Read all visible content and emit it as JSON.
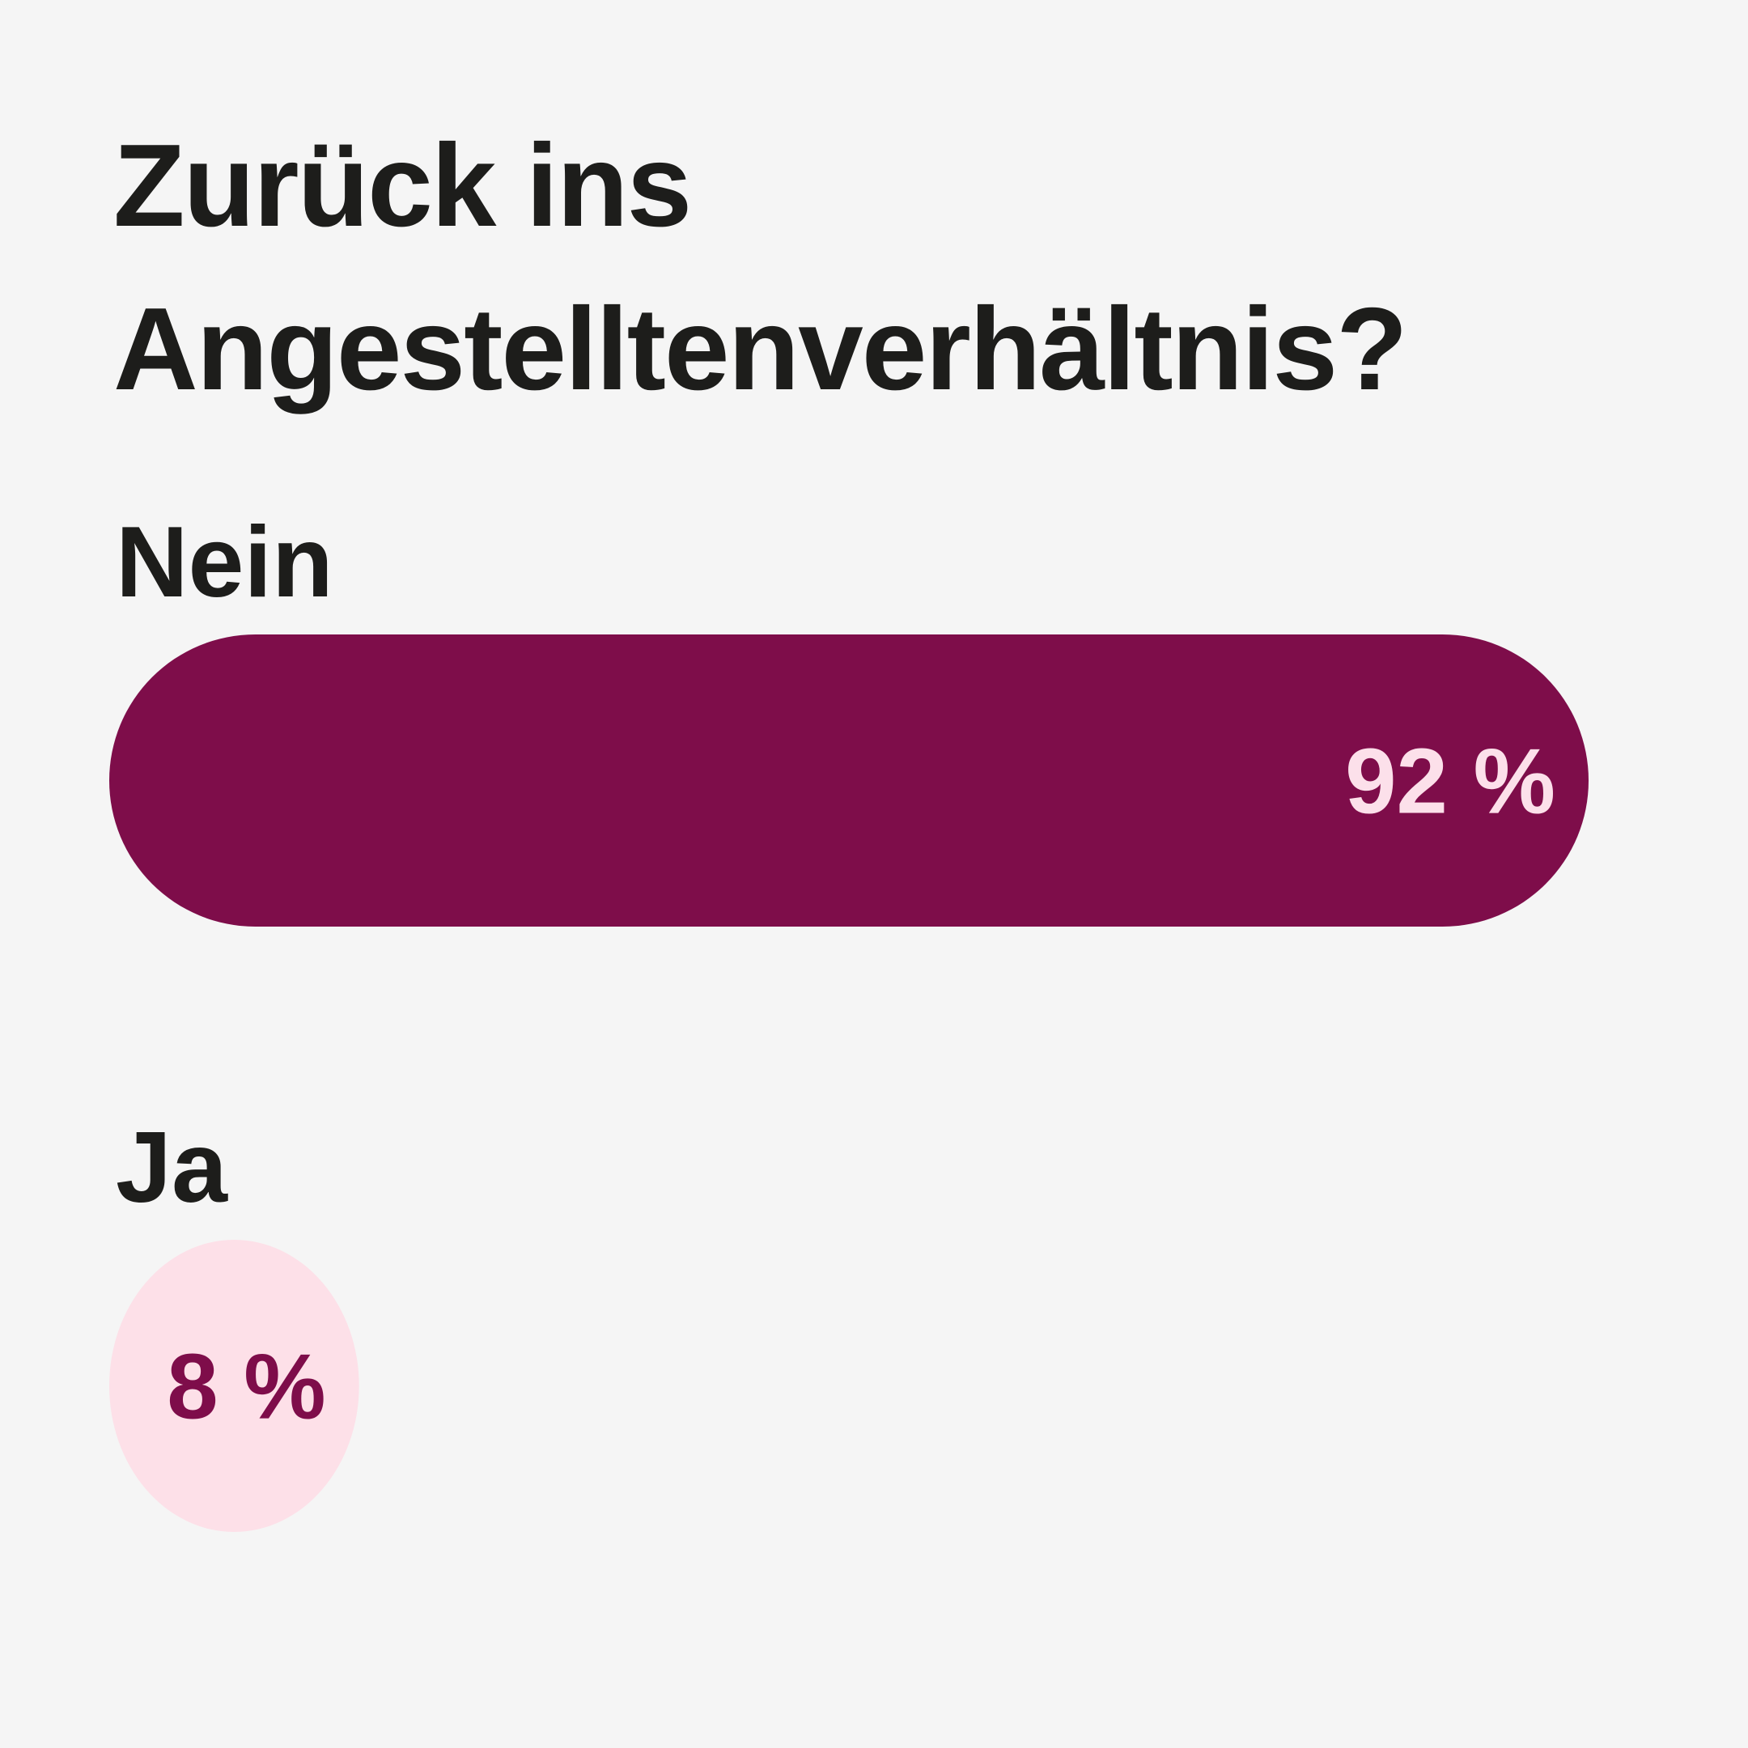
{
  "chart_data": {
    "type": "bar",
    "orientation": "horizontal",
    "title": "Zurück ins Angestelltenverhältnis?",
    "categories": [
      "Nein",
      "Ja"
    ],
    "values": [
      92,
      8
    ],
    "value_labels": [
      "92 %",
      "8 %"
    ],
    "colors": [
      "#7e0d4a",
      "#fde0e8"
    ],
    "label_colors": [
      "#fce0ea",
      "#7e0d4a"
    ]
  }
}
